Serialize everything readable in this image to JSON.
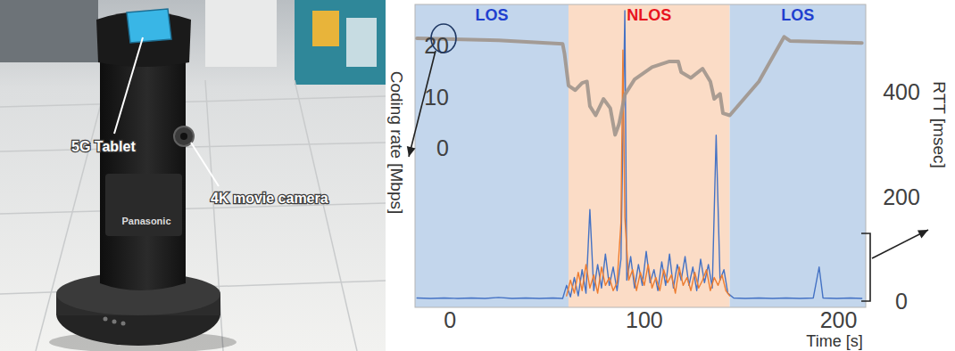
{
  "photo": {
    "labels": [
      "5G Tablet",
      "4K movie camera"
    ],
    "brand": "Panasonic"
  },
  "chart_data": {
    "type": "line",
    "x_label": "Time [s]",
    "y_label": "Coding rate [Mbps]",
    "y2_label": "RTT [msec]",
    "xlim": [
      -18,
      214
    ],
    "xticks": [
      0,
      100,
      200
    ],
    "ylim": [
      -31,
      28
    ],
    "yticks": [
      0,
      10,
      20
    ],
    "y2lim": [
      -12,
      567
    ],
    "y2ticks": [
      0,
      200,
      400
    ],
    "regions": [
      {
        "label": "LOS",
        "start": -18,
        "end": 61,
        "color": "#c3d6ec",
        "label_color": "#1f3fcf"
      },
      {
        "label": "NLOS",
        "start": 61,
        "end": 144,
        "color": "#fbdcc6",
        "label_color": "#e8141e"
      },
      {
        "label": "LOS",
        "start": 144,
        "end": 214,
        "color": "#c3d6ec",
        "label_color": "#1f3fcf"
      }
    ],
    "series": [
      {
        "type": "line",
        "axis": "y",
        "color": "#a0958c",
        "x": [
          -17,
          25,
          58,
          59,
          61,
          64.5,
          68,
          70.5,
          72,
          75,
          79,
          82.5,
          85,
          87,
          90,
          95,
          104,
          113,
          117.5,
          119,
          124,
          130,
          134,
          136,
          139,
          140.5,
          144,
          159,
          172,
          175,
          212
        ],
        "values": [
          21.4,
          21.0,
          20.3,
          18.3,
          12.2,
          11.3,
          12.7,
          13.0,
          8.2,
          6.4,
          9.6,
          7.8,
          2.6,
          4.7,
          10.4,
          13.4,
          15.8,
          16.9,
          16.9,
          14.8,
          13.7,
          15.5,
          13.0,
          9.6,
          10.6,
          6.8,
          6.4,
          13.0,
          21.7,
          20.9,
          20.5
        ]
      },
      {
        "type": "line",
        "axis": "y2",
        "color": "#4472c4",
        "x": [
          -17,
          -10,
          -3,
          4,
          11,
          18,
          25,
          32,
          39,
          46,
          53,
          58,
          60,
          62,
          64,
          66,
          68,
          70,
          72,
          74,
          76,
          78,
          80,
          82,
          84,
          86,
          88,
          90,
          91,
          93,
          95,
          97,
          99,
          101,
          103,
          105,
          107,
          109,
          111,
          113,
          115,
          117,
          119,
          121,
          123,
          125,
          127,
          129,
          131,
          133,
          135,
          137,
          139,
          141,
          143,
          146,
          152,
          159,
          166,
          173,
          180,
          187,
          190,
          192,
          199,
          206,
          212
        ],
        "values": [
          6,
          5,
          6,
          5,
          6,
          5,
          7,
          5,
          6,
          5,
          6,
          5,
          30,
          8,
          45,
          10,
          60,
          15,
          175,
          20,
          70,
          25,
          90,
          30,
          65,
          20,
          80,
          555,
          40,
          85,
          25,
          70,
          30,
          95,
          35,
          60,
          20,
          75,
          30,
          90,
          25,
          70,
          40,
          85,
          30,
          65,
          20,
          80,
          35,
          70,
          25,
          317,
          40,
          60,
          15,
          6,
          5,
          6,
          5,
          6,
          5,
          6,
          65,
          6,
          5,
          6,
          5
        ]
      },
      {
        "type": "line",
        "axis": "y2",
        "color": "#ed7d31",
        "x": [
          60,
          62,
          64,
          66,
          68,
          70,
          72,
          74,
          76,
          78,
          80,
          82,
          84,
          86,
          88,
          89,
          90,
          92,
          94,
          96,
          98,
          100,
          102,
          104,
          106,
          108,
          110,
          112,
          114,
          116,
          118,
          120,
          122,
          124,
          126,
          128,
          130,
          132,
          134,
          136,
          138,
          140,
          142,
          144
        ],
        "values": [
          10,
          40,
          15,
          55,
          20,
          70,
          25,
          50,
          15,
          65,
          30,
          45,
          20,
          35,
          150,
          480,
          160,
          40,
          60,
          20,
          55,
          30,
          70,
          25,
          45,
          20,
          60,
          35,
          50,
          15,
          65,
          30,
          45,
          20,
          55,
          25,
          40,
          60,
          20,
          45,
          30,
          50,
          20,
          10
        ]
      }
    ]
  }
}
